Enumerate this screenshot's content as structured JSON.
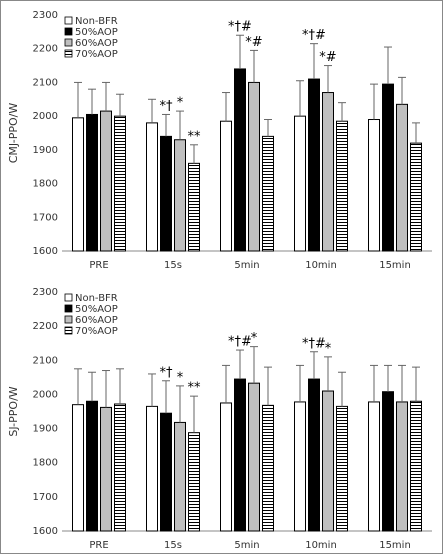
{
  "chart_data": [
    {
      "type": "bar",
      "ylabel": "CMJ-PPO/W",
      "categories": [
        "PRE",
        "15s",
        "5min",
        "10min",
        "15min"
      ],
      "ylim": [
        1600,
        2300
      ],
      "yticks": [
        1600,
        1700,
        1800,
        1900,
        2000,
        2100,
        2200,
        2300
      ],
      "legend": "top-left",
      "series": [
        {
          "name": "Non-BFR",
          "color": "#ffffff",
          "values": [
            1995,
            1980,
            1985,
            2000,
            1990
          ],
          "errors": [
            105,
            70,
            85,
            105,
            105
          ],
          "annotations": [
            null,
            null,
            null,
            null,
            null
          ]
        },
        {
          "name": "50%AOP",
          "color": "#000000",
          "values": [
            2005,
            1940,
            2140,
            2110,
            2095
          ],
          "errors": [
            75,
            65,
            100,
            105,
            110
          ],
          "annotations": [
            null,
            "*†",
            "*†#",
            "*†#",
            null
          ]
        },
        {
          "name": "60%AOP",
          "color": "#bfbfbf",
          "values": [
            2015,
            1930,
            2100,
            2070,
            2035
          ],
          "errors": [
            85,
            85,
            95,
            80,
            80
          ],
          "annotations": [
            null,
            "*",
            "*#",
            "*#",
            null
          ]
        },
        {
          "name": "70%AOP",
          "color": "#000000",
          "pattern": "horizontal-lines",
          "values": [
            2000,
            1860,
            1940,
            1985,
            1920
          ],
          "errors": [
            65,
            55,
            50,
            55,
            60
          ],
          "annotations": [
            null,
            "**",
            null,
            null,
            null
          ]
        }
      ]
    },
    {
      "type": "bar",
      "ylabel": "SJ-PPO/W",
      "categories": [
        "PRE",
        "15s",
        "5min",
        "10min",
        "15min"
      ],
      "ylim": [
        1600,
        2300
      ],
      "yticks": [
        1600,
        1700,
        1800,
        1900,
        2000,
        2100,
        2200,
        2300
      ],
      "legend": "top-left",
      "series": [
        {
          "name": "Non-BFR",
          "color": "#ffffff",
          "values": [
            1970,
            1965,
            1975,
            1978,
            1978
          ],
          "errors": [
            105,
            95,
            110,
            107,
            107
          ],
          "annotations": [
            null,
            null,
            null,
            null,
            null
          ]
        },
        {
          "name": "50%AOP",
          "color": "#000000",
          "values": [
            1980,
            1945,
            2045,
            2045,
            2008
          ],
          "errors": [
            85,
            95,
            85,
            80,
            77
          ],
          "annotations": [
            null,
            "*†",
            "*†#",
            "*†#",
            null
          ]
        },
        {
          "name": "60%AOP",
          "color": "#bfbfbf",
          "values": [
            1962,
            1918,
            2033,
            2010,
            1978
          ],
          "errors": [
            108,
            107,
            107,
            100,
            107
          ],
          "annotations": [
            null,
            "*",
            "*",
            "*",
            null
          ]
        },
        {
          "name": "70%AOP",
          "color": "#000000",
          "pattern": "horizontal-lines",
          "values": [
            1972,
            1888,
            1968,
            1965,
            1980
          ],
          "errors": [
            103,
            107,
            112,
            100,
            100
          ],
          "annotations": [
            null,
            "**",
            null,
            null,
            null
          ]
        }
      ]
    }
  ]
}
